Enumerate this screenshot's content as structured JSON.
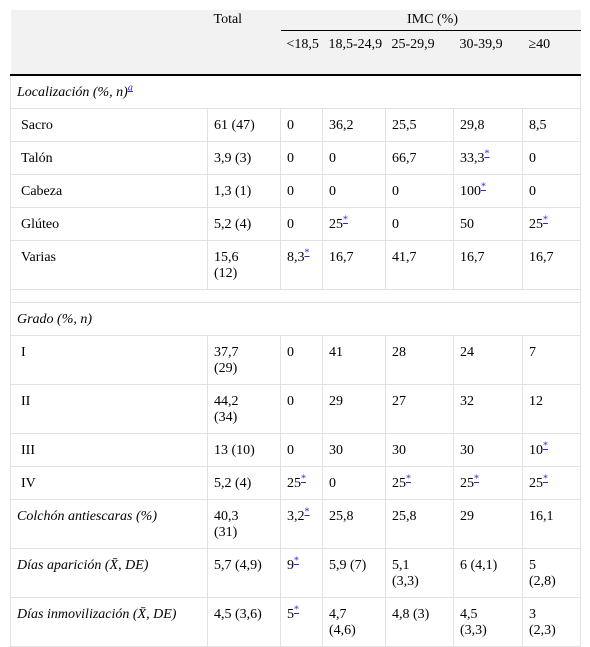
{
  "table": {
    "header": {
      "total": "Total",
      "imc": "IMC (%)",
      "groups": [
        "<18,5",
        "18,5-24,9",
        "25-29,9",
        "30-39,9",
        "≥40"
      ]
    },
    "blocks": [
      {
        "heading": {
          "text": "Localización (%, n)",
          "sup": "a"
        },
        "rows": [
          {
            "label": "Sacro",
            "cells": [
              "61 (47)",
              "0",
              "36,2",
              "25,5",
              "29,8",
              "8,5"
            ]
          },
          {
            "label": "Talón",
            "cells": [
              "3,9 (3)",
              "0",
              "0",
              "66,7",
              {
                "text": "33,3",
                "sup": "*"
              },
              "0"
            ]
          },
          {
            "label": "Cabeza",
            "cells": [
              "1,3 (1)",
              "0",
              "0",
              "0",
              {
                "text": "100",
                "sup": "*"
              },
              "0"
            ]
          },
          {
            "label": "Glúteo",
            "cells": [
              "5,2 (4)",
              "0",
              {
                "text": "25",
                "sup": "*"
              },
              "0",
              "50",
              {
                "text": "25",
                "sup": "*"
              }
            ]
          },
          {
            "label": "Varias",
            "cells": [
              "15,6 (12)",
              {
                "text": "8,3",
                "sup": "*"
              },
              "16,7",
              "41,7",
              "16,7",
              "16,7"
            ]
          }
        ]
      },
      {
        "heading": {
          "text": "Grado (%, n)"
        },
        "rows": [
          {
            "label": "I",
            "cells": [
              "37,7 (29)",
              "0",
              "41",
              "28",
              "24",
              "7"
            ]
          },
          {
            "label": "II",
            "cells": [
              "44,2 (34)",
              "0",
              "29",
              "27",
              "32",
              "12"
            ]
          },
          {
            "label": "III",
            "cells": [
              "13 (10)",
              "0",
              "30",
              "30",
              "30",
              {
                "text": "10",
                "sup": "*"
              }
            ]
          },
          {
            "label": "IV",
            "cells": [
              "5,2 (4)",
              {
                "text": "25",
                "sup": "*"
              },
              "0",
              {
                "text": "25",
                "sup": "*"
              },
              {
                "text": "25",
                "sup": "*"
              },
              {
                "text": "25",
                "sup": "*"
              }
            ]
          }
        ]
      }
    ],
    "summary_rows": [
      {
        "label": "Colchón antiescaras (%)",
        "cells": [
          "40,3 (31)",
          {
            "text": "3,2",
            "sup": "*"
          },
          "25,8",
          "25,8",
          "29",
          "16,1"
        ]
      },
      {
        "label": "Días aparición (X̄, DE)",
        "cells": [
          "5,7 (4,9)",
          {
            "text": "9",
            "sup": "*"
          },
          "5,9 (7)",
          "5,1 (3,3)",
          "6 (4,1)",
          "5 (2,8)"
        ]
      },
      {
        "label": "Días inmovilización (X̄, DE)",
        "cells": [
          "4,5 (3,6)",
          {
            "text": "5",
            "sup": "*"
          },
          "4,7 (4,6)",
          "4,8 (3)",
          "4,5 (3,3)",
          "3 (2,3)"
        ]
      }
    ]
  }
}
